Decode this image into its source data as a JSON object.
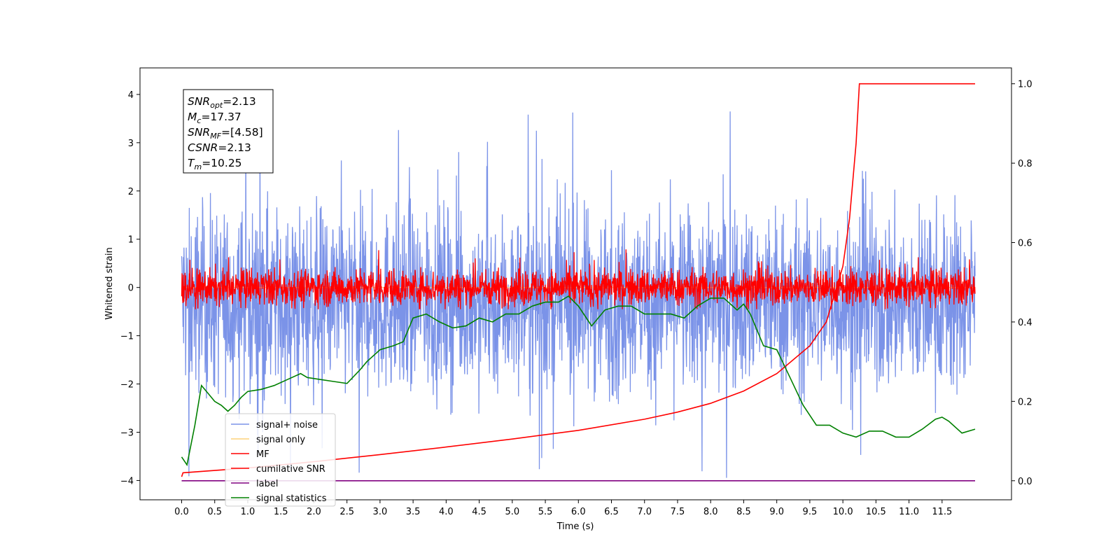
{
  "chart_data": {
    "type": "line",
    "xlabel": "Time (s)",
    "ylabel_left": "Whitened strain",
    "ylabel_right": "",
    "xlim": [
      -0.63,
      12.55
    ],
    "ylim_left": [
      -4.4,
      4.55
    ],
    "ylim_right": [
      -0.048,
      1.04
    ],
    "x_ticks": [
      "0.0",
      "0.5",
      "1.0",
      "1.5",
      "2.0",
      "2.5",
      "3.0",
      "3.5",
      "4.0",
      "4.5",
      "5.0",
      "5.5",
      "6.0",
      "6.5",
      "7.0",
      "7.5",
      "8.0",
      "8.5",
      "9.0",
      "9.5",
      "10.0",
      "10.5",
      "11.0",
      "11.5"
    ],
    "y_ticks_left": [
      "−4",
      "−3",
      "−2",
      "−1",
      "0",
      "1",
      "2",
      "3",
      "4"
    ],
    "y_ticks_right": [
      "0.0",
      "0.2",
      "0.4",
      "0.6",
      "0.8",
      "1.0"
    ],
    "grid": false,
    "legend_position": "lower-left",
    "series": [
      {
        "name": "signal+ noise",
        "color": "#7b93e8",
        "axis": "left",
        "description_stats": {
          "x_range": [
            0.0,
            12.0
          ],
          "center": -0.3,
          "typical_amplitude": 1.5,
          "min": -4.0,
          "max": 4.15
        }
      },
      {
        "name": "signal only",
        "color": "#fdd27a",
        "axis": "left",
        "values": [
          [
            0.0,
            0.0
          ],
          [
            12.0,
            0.0
          ]
        ]
      },
      {
        "name": "MF",
        "color": "#ff0000",
        "axis": "left",
        "description_stats": {
          "x_range": [
            0.0,
            12.0
          ],
          "center": 0.0,
          "typical_amplitude": 0.3,
          "min": -0.45,
          "max": 1.0
        }
      },
      {
        "name": "cumilative SNR",
        "color": "#ff0000",
        "axis": "right",
        "x": [
          0.0,
          0.02,
          1.0,
          2.0,
          3.0,
          4.0,
          5.0,
          6.0,
          7.0,
          7.5,
          8.0,
          8.5,
          9.0,
          9.5,
          9.75,
          10.0,
          10.1,
          10.2,
          10.25,
          10.25,
          11.0,
          12.0
        ],
        "y": [
          0.01,
          0.02,
          0.032,
          0.048,
          0.066,
          0.085,
          0.105,
          0.127,
          0.155,
          0.173,
          0.195,
          0.226,
          0.27,
          0.34,
          0.4,
          0.54,
          0.66,
          0.85,
          1.0,
          1.0,
          1.0,
          1.0
        ]
      },
      {
        "name": "label",
        "color": "#800080",
        "axis": "right",
        "x": [
          0.0,
          12.0
        ],
        "y": [
          0.0,
          0.0
        ]
      },
      {
        "name": "signal statistics",
        "color": "#008000",
        "axis": "right",
        "x": [
          0.0,
          0.08,
          0.2,
          0.3,
          0.4,
          0.5,
          0.6,
          0.7,
          0.8,
          0.9,
          1.0,
          1.2,
          1.4,
          1.6,
          1.8,
          1.9,
          2.1,
          2.3,
          2.5,
          2.7,
          2.8,
          3.0,
          3.2,
          3.35,
          3.5,
          3.7,
          3.9,
          4.1,
          4.3,
          4.5,
          4.7,
          4.9,
          5.1,
          5.3,
          5.5,
          5.7,
          5.85,
          6.0,
          6.2,
          6.4,
          6.6,
          6.8,
          7.0,
          7.2,
          7.4,
          7.6,
          7.8,
          8.0,
          8.2,
          8.4,
          8.5,
          8.6,
          8.8,
          9.0,
          9.2,
          9.4,
          9.6,
          9.8,
          10.0,
          10.2,
          10.4,
          10.6,
          10.8,
          11.0,
          11.2,
          11.4,
          11.5,
          11.6,
          11.8,
          12.0
        ],
        "y": [
          0.06,
          0.04,
          0.14,
          0.24,
          0.22,
          0.2,
          0.19,
          0.175,
          0.19,
          0.21,
          0.225,
          0.23,
          0.24,
          0.255,
          0.27,
          0.26,
          0.255,
          0.25,
          0.245,
          0.28,
          0.3,
          0.33,
          0.34,
          0.35,
          0.41,
          0.42,
          0.4,
          0.385,
          0.39,
          0.41,
          0.4,
          0.42,
          0.42,
          0.44,
          0.45,
          0.45,
          0.465,
          0.44,
          0.39,
          0.43,
          0.44,
          0.44,
          0.42,
          0.42,
          0.42,
          0.41,
          0.44,
          0.46,
          0.46,
          0.43,
          0.445,
          0.42,
          0.34,
          0.33,
          0.26,
          0.19,
          0.14,
          0.14,
          0.12,
          0.11,
          0.125,
          0.125,
          0.11,
          0.11,
          0.13,
          0.155,
          0.16,
          0.15,
          0.12,
          0.13
        ]
      }
    ]
  },
  "annotation": {
    "lines": [
      {
        "sym": "SNR",
        "sub": "opt",
        "val": "=2.13"
      },
      {
        "sym": "M",
        "sub": "c",
        "val": "=17.37"
      },
      {
        "sym": "SNR",
        "sub": "MF",
        "val": "=[4.58]"
      },
      {
        "sym": "CSNR",
        "sub": "",
        "val": "=2.13"
      },
      {
        "sym": "T",
        "sub": "m",
        "val": "=10.25"
      }
    ]
  }
}
